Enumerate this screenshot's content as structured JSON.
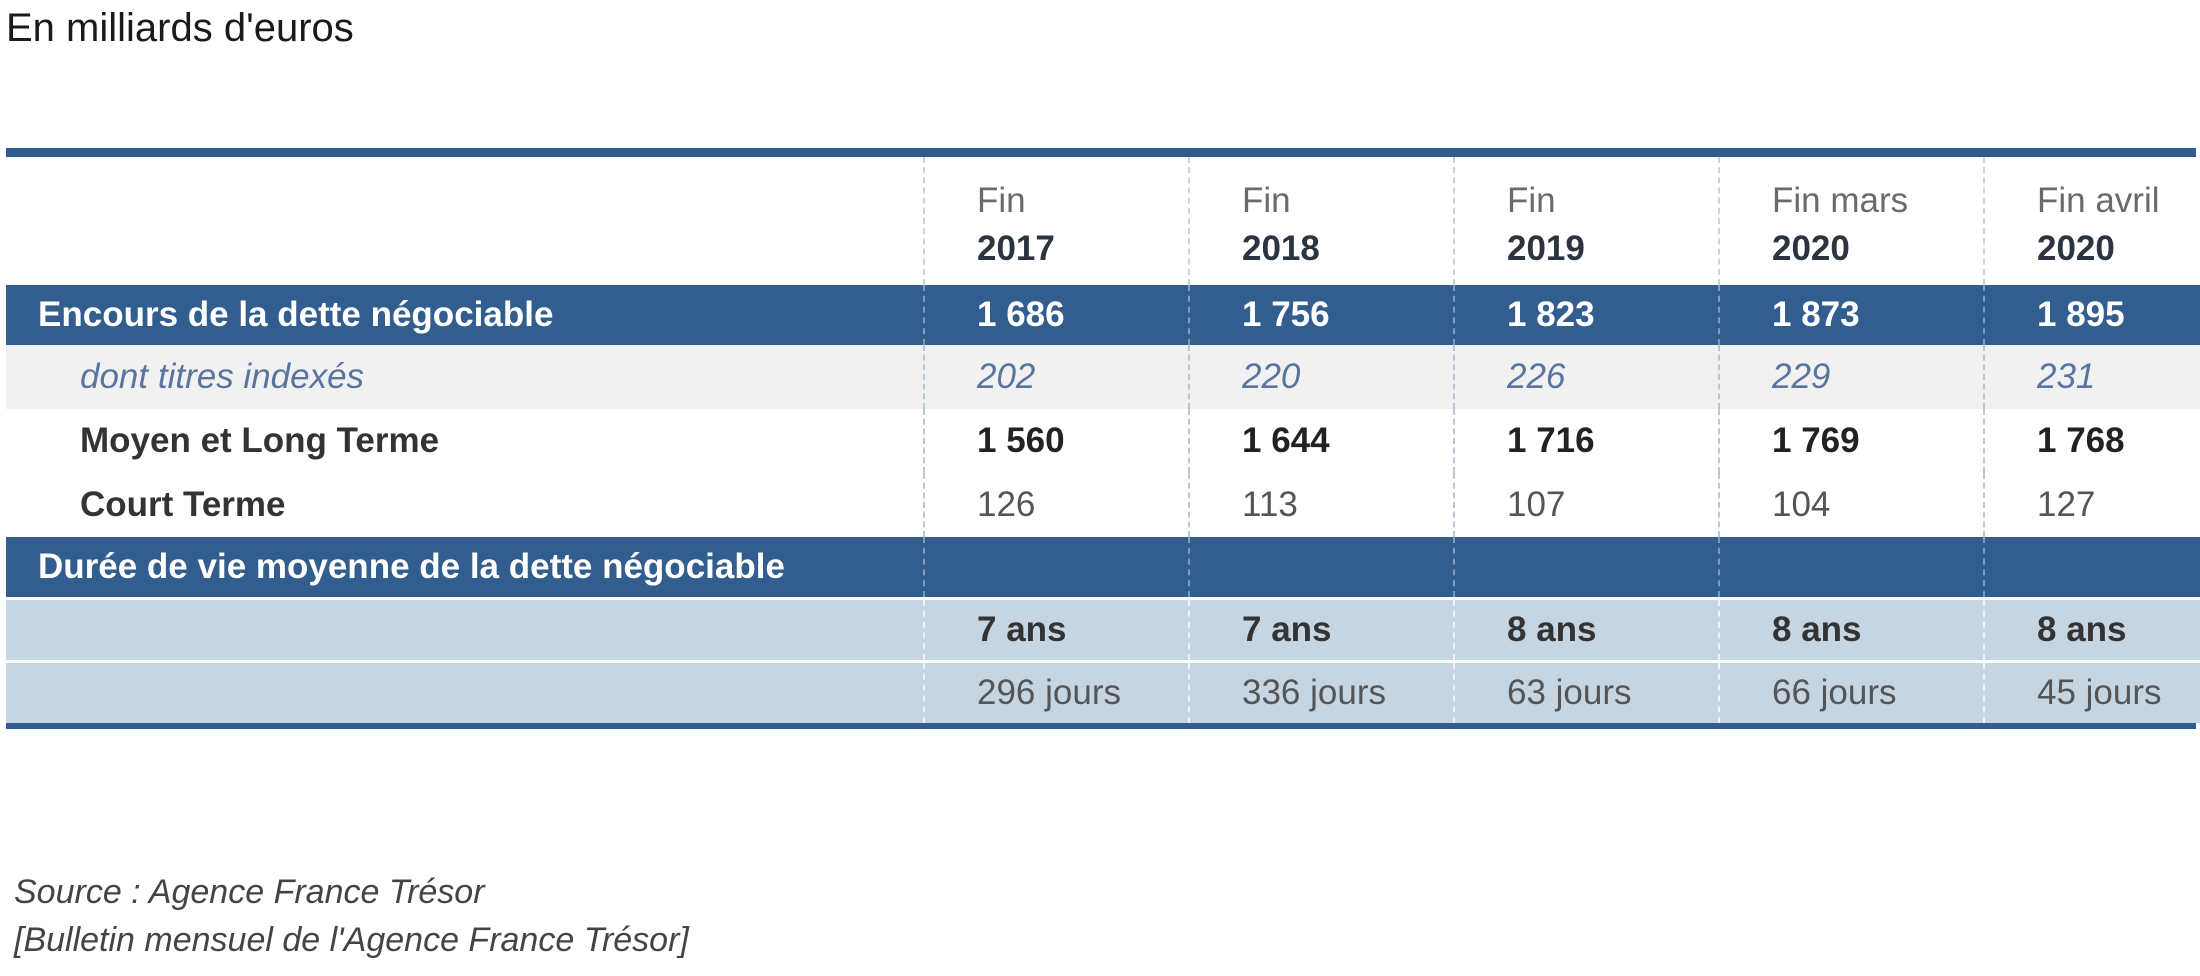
{
  "unit_label": "En milliards d'euros",
  "columns": [
    {
      "top": "Fin",
      "year": "2017"
    },
    {
      "top": "Fin",
      "year": "2018"
    },
    {
      "top": "Fin",
      "year": "2019"
    },
    {
      "top": "Fin mars",
      "year": "2020"
    },
    {
      "top": "Fin avril",
      "year": "2020"
    }
  ],
  "rows": {
    "encours": {
      "label": "Encours de la dette négociable",
      "values": [
        "1 686",
        "1 756",
        "1 823",
        "1 873",
        "1 895"
      ]
    },
    "indexes": {
      "label": "dont titres indexés",
      "values": [
        "202",
        "220",
        "226",
        "229",
        "231"
      ]
    },
    "mlt": {
      "label": "Moyen et Long Terme",
      "values": [
        "1 560",
        "1 644",
        "1 716",
        "1 769",
        "1 768"
      ]
    },
    "ct": {
      "label": "Court Terme",
      "values": [
        "126",
        "113",
        "107",
        "104",
        "127"
      ]
    },
    "duree": {
      "label": "Durée de vie moyenne de la dette négociable"
    },
    "duree_ans": {
      "values": [
        "7 ans",
        "7 ans",
        "8 ans",
        "8 ans",
        "8 ans"
      ]
    },
    "duree_jours": {
      "values": [
        "296 jours",
        "336 jours",
        "63 jours",
        "66 jours",
        "45 jours"
      ]
    }
  },
  "source": {
    "line1": "Source : Agence France Trésor",
    "line2": "[Bulletin mensuel de l'Agence France Trésor]"
  }
}
